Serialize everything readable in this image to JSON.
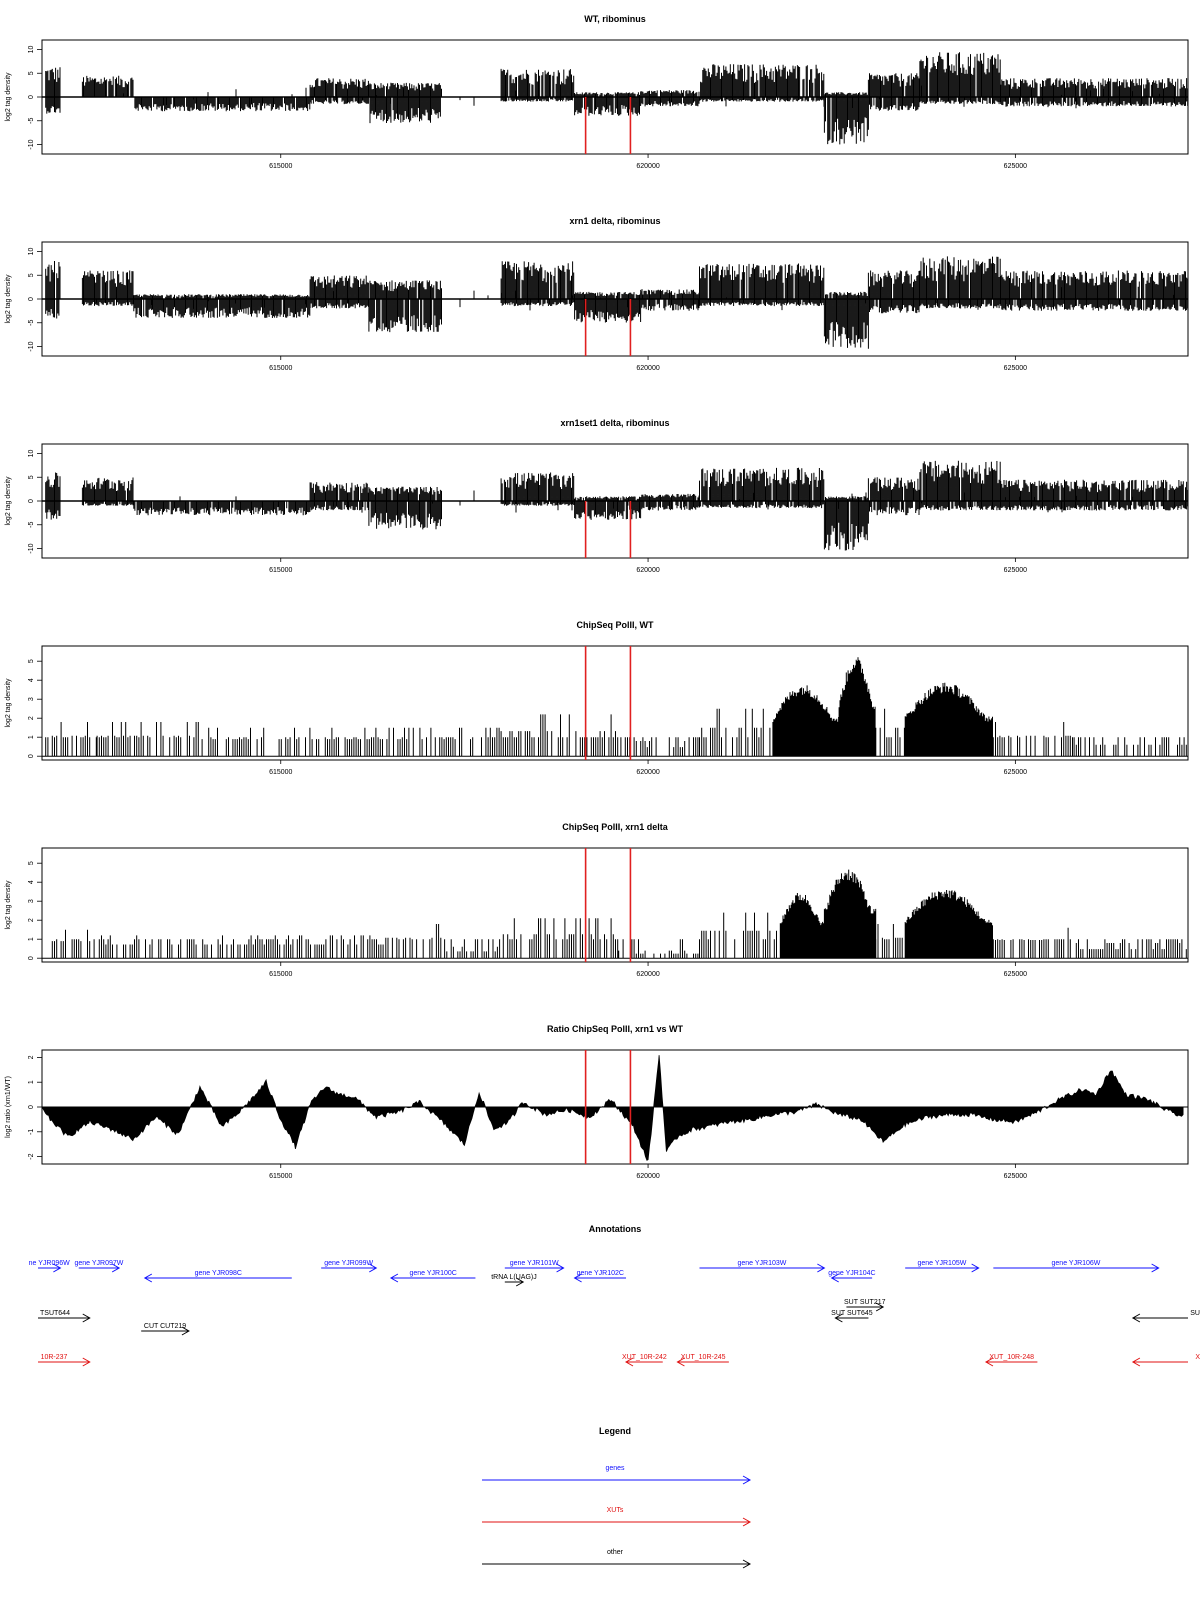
{
  "region": {
    "start": 611750,
    "end": 627350
  },
  "highlight_colour": "#e02020",
  "panels": [
    {
      "title": "WT, ribominus",
      "ylabel": "log2 tag density",
      "yticks": [
        "10",
        "5",
        "0",
        "-5",
        "-10"
      ],
      "xticks": [
        "615000",
        "620000",
        "625000"
      ]
    },
    {
      "title": "xrn1 delta, ribominus",
      "ylabel": "log2 tag density",
      "yticks": [
        "10",
        "5",
        "0",
        "-5",
        "-10"
      ],
      "xticks": [
        "615000",
        "620000",
        "625000"
      ]
    },
    {
      "title": "xrn1set1 delta, ribominus",
      "ylabel": "log2 tag density",
      "yticks": [
        "10",
        "5",
        "0",
        "-5",
        "-10"
      ],
      "xticks": [
        "615000",
        "620000",
        "625000"
      ]
    },
    {
      "title": "ChipSeq PolII, WT",
      "ylabel": "log2 tag density",
      "yticks": [
        "5",
        "4",
        "3",
        "2",
        "1",
        "0"
      ],
      "xticks": [
        "615000",
        "620000",
        "625000"
      ]
    },
    {
      "title": "ChipSeq PolII, xrn1 delta",
      "ylabel": "log2 tag density",
      "yticks": [
        "5",
        "4",
        "3",
        "2",
        "1",
        "0"
      ],
      "xticks": [
        "615000",
        "620000",
        "625000"
      ]
    },
    {
      "title": "Ratio ChipSeq PolII, xrn1 vs WT",
      "ylabel": "log2 ratio (xrn1/WT)",
      "yticks": [
        "2",
        "1",
        "0",
        "-1",
        "-2"
      ],
      "xticks": [
        "615000",
        "620000",
        "625000"
      ]
    }
  ],
  "chart_data": [
    {
      "type": "bar",
      "title": "WT, ribominus",
      "ylabel": "log2 tag density",
      "ylim": [
        -12,
        12
      ],
      "xlim": [
        611750,
        627350
      ],
      "highlight_positions": [
        619150,
        619760
      ],
      "signal_profile": [
        {
          "x": [
            611800,
            612000
          ],
          "y": [
            6.5,
            -3.5
          ]
        },
        {
          "x": [
            612300,
            613000
          ],
          "y": [
            4.5,
            -0.5
          ]
        },
        {
          "x": [
            613000,
            615400
          ],
          "y": [
            0.5,
            -3
          ]
        },
        {
          "x": [
            615400,
            616200
          ],
          "y": [
            4,
            -1.5
          ]
        },
        {
          "x": [
            616200,
            617200
          ],
          "y": [
            3,
            -5.5
          ]
        },
        {
          "x": [
            618000,
            619000
          ],
          "y": [
            6,
            -1
          ]
        },
        {
          "x": [
            619000,
            619900
          ],
          "y": [
            1,
            -4
          ]
        },
        {
          "x": [
            619900,
            620700
          ],
          "y": [
            1.5,
            -2
          ]
        },
        {
          "x": [
            620700,
            622400
          ],
          "y": [
            7,
            -1
          ]
        },
        {
          "x": [
            622400,
            623000
          ],
          "y": [
            1,
            -10
          ]
        },
        {
          "x": [
            623000,
            623700
          ],
          "y": [
            5,
            -3
          ]
        },
        {
          "x": [
            623700,
            624800
          ],
          "y": [
            9.5,
            -1.5
          ]
        },
        {
          "x": [
            624800,
            627350
          ],
          "y": [
            4,
            -2
          ]
        }
      ]
    },
    {
      "type": "bar",
      "title": "xrn1 delta, ribominus",
      "ylabel": "log2 tag density",
      "ylim": [
        -12,
        12
      ],
      "xlim": [
        611750,
        627350
      ],
      "highlight_positions": [
        619150,
        619760
      ],
      "signal_profile": [
        {
          "x": [
            611800,
            612000
          ],
          "y": [
            8,
            -5
          ]
        },
        {
          "x": [
            612300,
            613000
          ],
          "y": [
            6,
            -1.5
          ]
        },
        {
          "x": [
            613000,
            615400
          ],
          "y": [
            1,
            -4
          ]
        },
        {
          "x": [
            615400,
            616200
          ],
          "y": [
            5,
            -2
          ]
        },
        {
          "x": [
            616200,
            617200
          ],
          "y": [
            4,
            -7
          ]
        },
        {
          "x": [
            618000,
            619000
          ],
          "y": [
            8,
            -1.5
          ]
        },
        {
          "x": [
            619000,
            619900
          ],
          "y": [
            1.5,
            -5
          ]
        },
        {
          "x": [
            619900,
            620700
          ],
          "y": [
            2,
            -2.5
          ]
        },
        {
          "x": [
            620700,
            622400
          ],
          "y": [
            7.5,
            -1.5
          ]
        },
        {
          "x": [
            622400,
            623000
          ],
          "y": [
            1.5,
            -10.5
          ]
        },
        {
          "x": [
            623000,
            623700
          ],
          "y": [
            6,
            -3
          ]
        },
        {
          "x": [
            623700,
            624800
          ],
          "y": [
            9,
            -2
          ]
        },
        {
          "x": [
            624800,
            627350
          ],
          "y": [
            6,
            -2.5
          ]
        }
      ]
    },
    {
      "type": "bar",
      "title": "xrn1set1 delta, ribominus",
      "ylabel": "log2 tag density",
      "ylim": [
        -12,
        12
      ],
      "xlim": [
        611750,
        627350
      ],
      "highlight_positions": [
        619150,
        619760
      ],
      "signal_profile": [
        {
          "x": [
            611800,
            612000
          ],
          "y": [
            6,
            -4
          ]
        },
        {
          "x": [
            612300,
            613000
          ],
          "y": [
            5,
            -1
          ]
        },
        {
          "x": [
            613000,
            615400
          ],
          "y": [
            0.5,
            -3
          ]
        },
        {
          "x": [
            615400,
            616200
          ],
          "y": [
            4,
            -2
          ]
        },
        {
          "x": [
            616200,
            617200
          ],
          "y": [
            3,
            -6
          ]
        },
        {
          "x": [
            618000,
            619000
          ],
          "y": [
            6,
            -1
          ]
        },
        {
          "x": [
            619000,
            619900
          ],
          "y": [
            1,
            -4
          ]
        },
        {
          "x": [
            619900,
            620700
          ],
          "y": [
            1.5,
            -2
          ]
        },
        {
          "x": [
            620700,
            622400
          ],
          "y": [
            7,
            -1.5
          ]
        },
        {
          "x": [
            622400,
            623000
          ],
          "y": [
            1,
            -10.5
          ]
        },
        {
          "x": [
            623000,
            623700
          ],
          "y": [
            5,
            -3
          ]
        },
        {
          "x": [
            623700,
            624800
          ],
          "y": [
            8.5,
            -2
          ]
        },
        {
          "x": [
            624800,
            627350
          ],
          "y": [
            4.5,
            -2
          ]
        }
      ]
    },
    {
      "type": "bar",
      "title": "ChipSeq PolII, WT",
      "ylabel": "log2 tag density",
      "ylim": [
        -0.2,
        5.8
      ],
      "xlim": [
        611750,
        627350
      ],
      "highlight_positions": [
        619150,
        619760
      ],
      "signal_profile": [
        {
          "x": [
            611800,
            612500
          ],
          "y": [
            1.8
          ]
        },
        {
          "x": [
            612500,
            613900
          ],
          "y": [
            1.8
          ]
        },
        {
          "x": [
            613900,
            618000
          ],
          "y": [
            1.5
          ]
        },
        {
          "x": [
            618000,
            619600
          ],
          "y": [
            2.2
          ]
        },
        {
          "x": [
            619600,
            620700
          ],
          "y": [
            0.8
          ]
        },
        {
          "x": [
            620700,
            621700
          ],
          "y": [
            2.5
          ]
        },
        {
          "x": [
            621700,
            622600
          ],
          "y": [
            3.8
          ]
        },
        {
          "x": [
            622600,
            623100
          ],
          "y": [
            5.3
          ]
        },
        {
          "x": [
            623100,
            623500
          ],
          "y": [
            2.5
          ]
        },
        {
          "x": [
            623500,
            624700
          ],
          "y": [
            3.9
          ]
        },
        {
          "x": [
            624700,
            625800
          ],
          "y": [
            1.8
          ]
        },
        {
          "x": [
            625800,
            627350
          ],
          "y": [
            1
          ]
        }
      ]
    },
    {
      "type": "bar",
      "title": "ChipSeq PolII, xrn1 delta",
      "ylabel": "log2 tag density",
      "ylim": [
        -0.2,
        5.8
      ],
      "xlim": [
        611750,
        627350
      ],
      "highlight_positions": [
        619150,
        619760
      ],
      "signal_profile": [
        {
          "x": [
            611800,
            612500
          ],
          "y": [
            1.5
          ]
        },
        {
          "x": [
            612500,
            616400
          ],
          "y": [
            1.2
          ]
        },
        {
          "x": [
            616400,
            617200
          ],
          "y": [
            1.8
          ]
        },
        {
          "x": [
            617200,
            618000
          ],
          "y": [
            0.6
          ]
        },
        {
          "x": [
            618000,
            619600
          ],
          "y": [
            2.1
          ]
        },
        {
          "x": [
            619600,
            620700
          ],
          "y": [
            0.4
          ]
        },
        {
          "x": [
            620700,
            621800
          ],
          "y": [
            2.4
          ]
        },
        {
          "x": [
            621800,
            622400
          ],
          "y": [
            3.5
          ]
        },
        {
          "x": [
            622400,
            623100
          ],
          "y": [
            4.8
          ]
        },
        {
          "x": [
            623100,
            623500
          ],
          "y": [
            1.8
          ]
        },
        {
          "x": [
            623500,
            624700
          ],
          "y": [
            3.7
          ]
        },
        {
          "x": [
            624700,
            625800
          ],
          "y": [
            1.6
          ]
        },
        {
          "x": [
            625800,
            627350
          ],
          "y": [
            0.8
          ]
        }
      ]
    },
    {
      "type": "area",
      "title": "Ratio ChipSeq PolII, xrn1 vs WT",
      "ylabel": "log2 ratio (xrn1/WT)",
      "ylim": [
        -2.3,
        2.3
      ],
      "xlim": [
        611750,
        627350
      ],
      "highlight_positions": [
        619150,
        619760
      ],
      "x": [
        611800,
        612100,
        612400,
        612700,
        613000,
        613300,
        613600,
        613900,
        614200,
        614400,
        614600,
        614800,
        615000,
        615200,
        615400,
        615600,
        615800,
        616000,
        616300,
        616600,
        616900,
        617200,
        617500,
        617700,
        617900,
        618100,
        618300,
        618600,
        618900,
        619200,
        619500,
        619800,
        620000,
        620150,
        620250,
        620400,
        620600,
        620800,
        621100,
        621400,
        621700,
        622000,
        622300,
        622600,
        622900,
        623200,
        623500,
        623800,
        624100,
        624400,
        624700,
        625000,
        625300,
        625600,
        625900,
        626100,
        626300,
        626500,
        626800,
        627100,
        627300
      ],
      "y": [
        -0.3,
        -1.2,
        -0.6,
        -0.9,
        -1.3,
        -0.4,
        -1.1,
        0.8,
        -0.8,
        -0.3,
        0.3,
        1.0,
        -0.5,
        -1.6,
        0.1,
        0.8,
        0.5,
        0.4,
        -0.4,
        -0.2,
        0.2,
        -0.6,
        -1.5,
        0.6,
        -0.9,
        -0.6,
        0.2,
        -0.3,
        -0.1,
        -0.4,
        0.3,
        -0.8,
        -2.2,
        2.1,
        -1.8,
        -1.2,
        -0.9,
        -0.8,
        -0.6,
        -0.5,
        -0.3,
        -0.2,
        0.1,
        -0.3,
        -0.5,
        -1.4,
        -0.7,
        -0.4,
        -0.3,
        -0.3,
        -0.5,
        -0.6,
        -0.2,
        0.3,
        0.7,
        0.5,
        1.5,
        0.5,
        0.3,
        -0.2,
        -0.4
      ]
    }
  ],
  "annotations": {
    "title": "Annotations",
    "genes": [
      {
        "label": "ne YJR096W",
        "start": 611650,
        "end": 612000,
        "strand": "+"
      },
      {
        "label": "gene YJR097W",
        "start": 612250,
        "end": 612800,
        "strand": "+"
      },
      {
        "label": "gene YJR098C",
        "start": 613150,
        "end": 615150,
        "strand": "-"
      },
      {
        "label": "gene YJR099W",
        "start": 615550,
        "end": 616300,
        "strand": "+"
      },
      {
        "label": "gene YJR100C",
        "start": 616500,
        "end": 617650,
        "strand": "-"
      },
      {
        "label": "gene YJR101W",
        "start": 618050,
        "end": 618850,
        "strand": "+"
      },
      {
        "label": "gene YJR102C",
        "start": 619000,
        "end": 619700,
        "strand": "-"
      },
      {
        "label": "gene YJR103W",
        "start": 620700,
        "end": 622400,
        "strand": "+"
      },
      {
        "label": "gene YJR104C",
        "start": 622500,
        "end": 623050,
        "strand": "-"
      },
      {
        "label": "gene YJR105W",
        "start": 623500,
        "end": 624500,
        "strand": "+"
      },
      {
        "label": "gene YJR106W",
        "start": 624700,
        "end": 626950,
        "strand": "+"
      }
    ],
    "xuts": [
      {
        "label": "10R-237",
        "start": 611650,
        "end": 612400,
        "strand": "+"
      },
      {
        "label": "XUT_10R-242",
        "start": 619700,
        "end": 620200,
        "strand": "-"
      },
      {
        "label": "XUT_10R-245",
        "start": 620400,
        "end": 621100,
        "strand": "-"
      },
      {
        "label": "XUT_10R-248",
        "start": 624600,
        "end": 625300,
        "strand": "-"
      },
      {
        "label": "X",
        "start": 626600,
        "end": 627350,
        "strand": "-"
      }
    ],
    "other": [
      {
        "label": "TSUT644",
        "start": 611650,
        "end": 612400,
        "strand": "+"
      },
      {
        "label": "CUT CUT219",
        "start": 613100,
        "end": 613750,
        "strand": "+"
      },
      {
        "label": "tRNA L(UAG)J",
        "start": 618050,
        "end": 618300,
        "strand": "+"
      },
      {
        "label": "SUT SUT217",
        "start": 622700,
        "end": 623200,
        "strand": "+"
      },
      {
        "label": "SUT SUT645",
        "start": 622550,
        "end": 623000,
        "strand": "-"
      },
      {
        "label": "SU",
        "start": 626600,
        "end": 627350,
        "strand": "-"
      }
    ]
  },
  "legend": {
    "title": "Legend",
    "items": [
      {
        "label": "genes",
        "color": "#1010ff"
      },
      {
        "label": "XUTs",
        "color": "#e01010"
      },
      {
        "label": "other",
        "color": "#000000"
      }
    ]
  }
}
